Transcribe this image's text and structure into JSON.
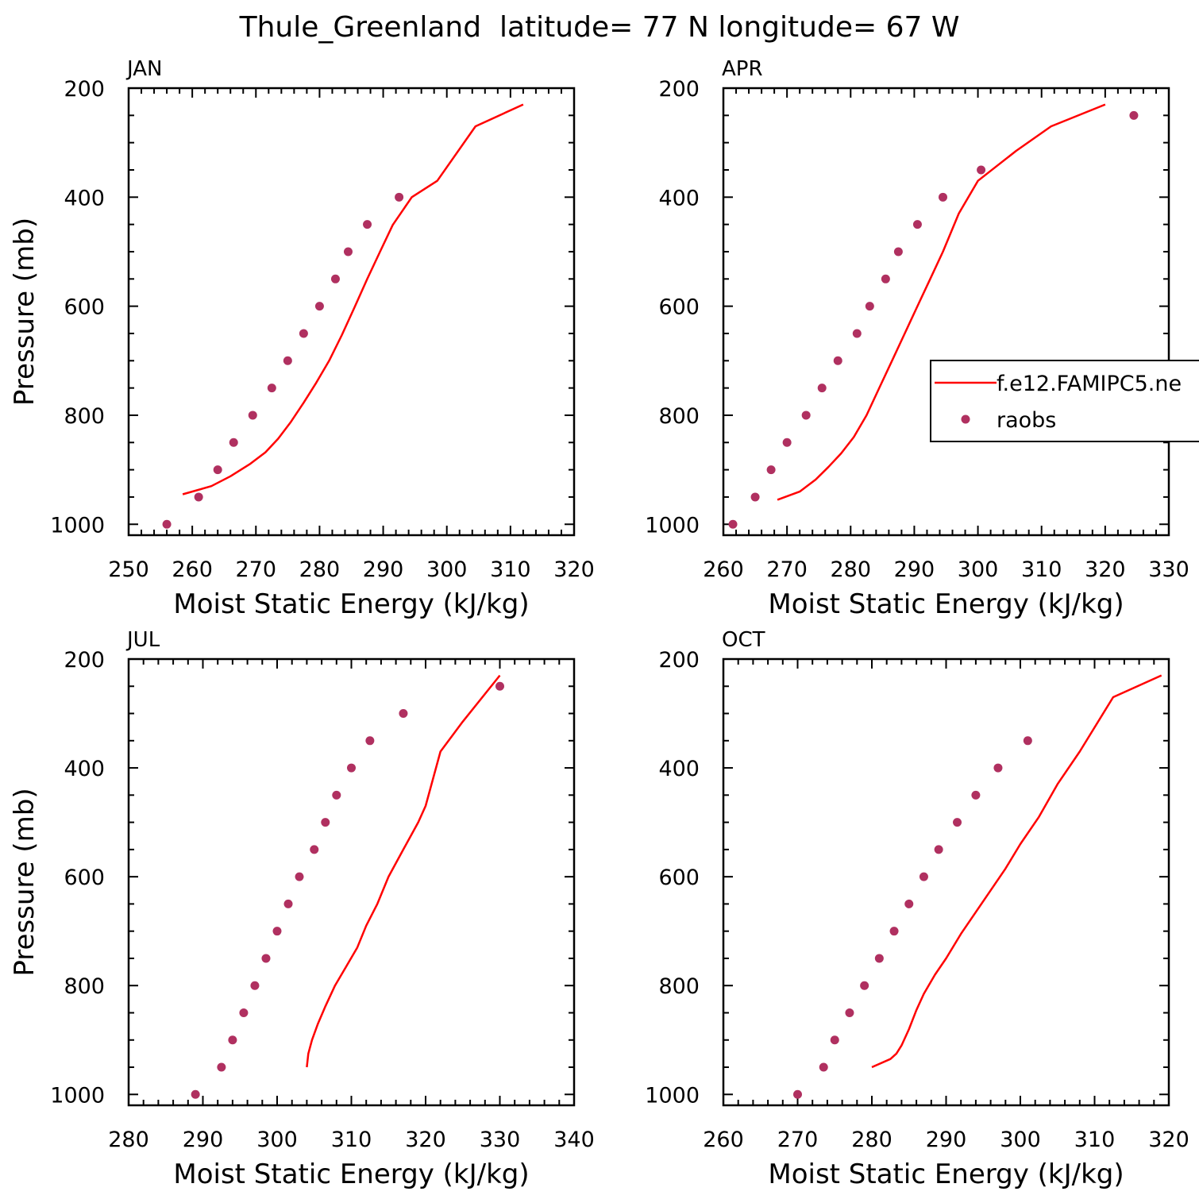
{
  "figure_title": "Thule_Greenland  latitude= 77 N longitude= 67 W",
  "colors": {
    "model": "#ff0000",
    "raobs": "#b03060",
    "axes": "#000000"
  },
  "legend": {
    "model_label": "f.e12.FAMIPC5.ne",
    "obs_label": "raobs",
    "panel": "APR",
    "placement": "center-right"
  },
  "chart_data": [
    {
      "type": "scatter",
      "title": "JAN",
      "xlabel": "Moist Static Energy (kJ/kg)",
      "ylabel": "Pressure (mb)",
      "xlim": [
        250,
        320
      ],
      "ylim": [
        1020,
        200
      ],
      "xticks": [
        250,
        260,
        270,
        280,
        290,
        300,
        310,
        320
      ],
      "yticks": [
        200,
        400,
        600,
        800,
        1000
      ],
      "series": [
        {
          "name": "f.e12.FAMIPC5.ne",
          "kind": "line",
          "x": [
            258.5,
            263,
            266,
            269,
            271.5,
            273.5,
            275.5,
            277.5,
            279.5,
            281.5,
            283.5,
            285.5,
            287.5,
            289.5,
            291.5,
            294.5,
            298.5,
            304.5,
            312
          ],
          "y": [
            945,
            930,
            912,
            890,
            868,
            843,
            812,
            777,
            740,
            700,
            653,
            602,
            550,
            500,
            451,
            400,
            370,
            270,
            230
          ]
        },
        {
          "name": "raobs",
          "kind": "points",
          "x": [
            256,
            261,
            264,
            266.5,
            269.5,
            272.5,
            275,
            277.5,
            280,
            282.5,
            284.5,
            287.5,
            292.5
          ],
          "y": [
            1000,
            950,
            900,
            850,
            800,
            750,
            700,
            650,
            600,
            550,
            500,
            450,
            400
          ]
        }
      ]
    },
    {
      "type": "scatter",
      "title": "APR",
      "xlabel": "Moist Static Energy (kJ/kg)",
      "ylabel": "",
      "xlim": [
        260,
        330
      ],
      "ylim": [
        1020,
        200
      ],
      "xticks": [
        260,
        270,
        280,
        290,
        300,
        310,
        320,
        330
      ],
      "yticks": [
        200,
        400,
        600,
        800,
        1000
      ],
      "series": [
        {
          "name": "f.e12.FAMIPC5.ne",
          "kind": "line",
          "x": [
            268.5,
            272,
            274.5,
            276.5,
            278.5,
            280.5,
            282.5,
            284.5,
            286.5,
            288.5,
            290.5,
            292.5,
            294.5,
            297,
            300,
            306,
            311.5,
            320
          ],
          "y": [
            955,
            940,
            918,
            895,
            870,
            840,
            800,
            750,
            700,
            650,
            600,
            550,
            500,
            430,
            370,
            315,
            270,
            230
          ]
        },
        {
          "name": "raobs",
          "kind": "points",
          "x": [
            261.5,
            265,
            267.5,
            270,
            273,
            275.5,
            278,
            281,
            283,
            285.5,
            287.5,
            290.5,
            294.5,
            300.5,
            324.5
          ],
          "y": [
            1000,
            950,
            900,
            850,
            800,
            750,
            700,
            650,
            600,
            550,
            500,
            450,
            400,
            350,
            250
          ]
        }
      ]
    },
    {
      "type": "scatter",
      "title": "JUL",
      "xlabel": "Moist Static Energy (kJ/kg)",
      "ylabel": "Pressure (mb)",
      "xlim": [
        280,
        340
      ],
      "ylim": [
        1020,
        200
      ],
      "xticks": [
        280,
        290,
        300,
        310,
        320,
        330,
        340
      ],
      "yticks": [
        200,
        400,
        600,
        800,
        1000
      ],
      "series": [
        {
          "name": "f.e12.FAMIPC5.ne",
          "kind": "line",
          "x": [
            304,
            304.2,
            304.7,
            305.5,
            306.5,
            307.8,
            309.3,
            310.8,
            312,
            313.5,
            315,
            317,
            319,
            320,
            322,
            325,
            330
          ],
          "y": [
            950,
            925,
            900,
            870,
            838,
            800,
            765,
            730,
            690,
            650,
            600,
            550,
            500,
            470,
            370,
            315,
            230
          ]
        },
        {
          "name": "raobs",
          "kind": "points",
          "x": [
            289,
            292.5,
            294,
            295.5,
            297,
            298.5,
            300,
            301.5,
            303,
            305,
            306.5,
            308,
            310,
            312.5,
            317,
            330
          ],
          "y": [
            1000,
            950,
            900,
            850,
            800,
            750,
            700,
            650,
            600,
            550,
            500,
            450,
            400,
            350,
            300,
            250
          ]
        }
      ]
    },
    {
      "type": "scatter",
      "title": "OCT",
      "xlabel": "Moist Static Energy (kJ/kg)",
      "ylabel": "",
      "xlim": [
        260,
        320
      ],
      "ylim": [
        1020,
        200
      ],
      "xticks": [
        260,
        270,
        280,
        290,
        300,
        310,
        320
      ],
      "yticks": [
        200,
        400,
        600,
        800,
        1000
      ],
      "series": [
        {
          "name": "f.e12.FAMIPC5.ne",
          "kind": "line",
          "x": [
            280,
            282.5,
            283.3,
            284,
            285,
            286,
            287,
            288.5,
            290,
            292,
            294,
            296,
            298,
            300,
            302.5,
            305,
            308,
            312.5,
            319
          ],
          "y": [
            950,
            935,
            925,
            910,
            880,
            845,
            815,
            780,
            750,
            705,
            665,
            625,
            585,
            540,
            490,
            430,
            370,
            270,
            230
          ]
        },
        {
          "name": "raobs",
          "kind": "points",
          "x": [
            270,
            273.5,
            275,
            277,
            279,
            281,
            283,
            285,
            287,
            289,
            291.5,
            294,
            297,
            301
          ],
          "y": [
            1000,
            950,
            900,
            850,
            800,
            750,
            700,
            650,
            600,
            550,
            500,
            450,
            400,
            350
          ]
        }
      ]
    }
  ]
}
